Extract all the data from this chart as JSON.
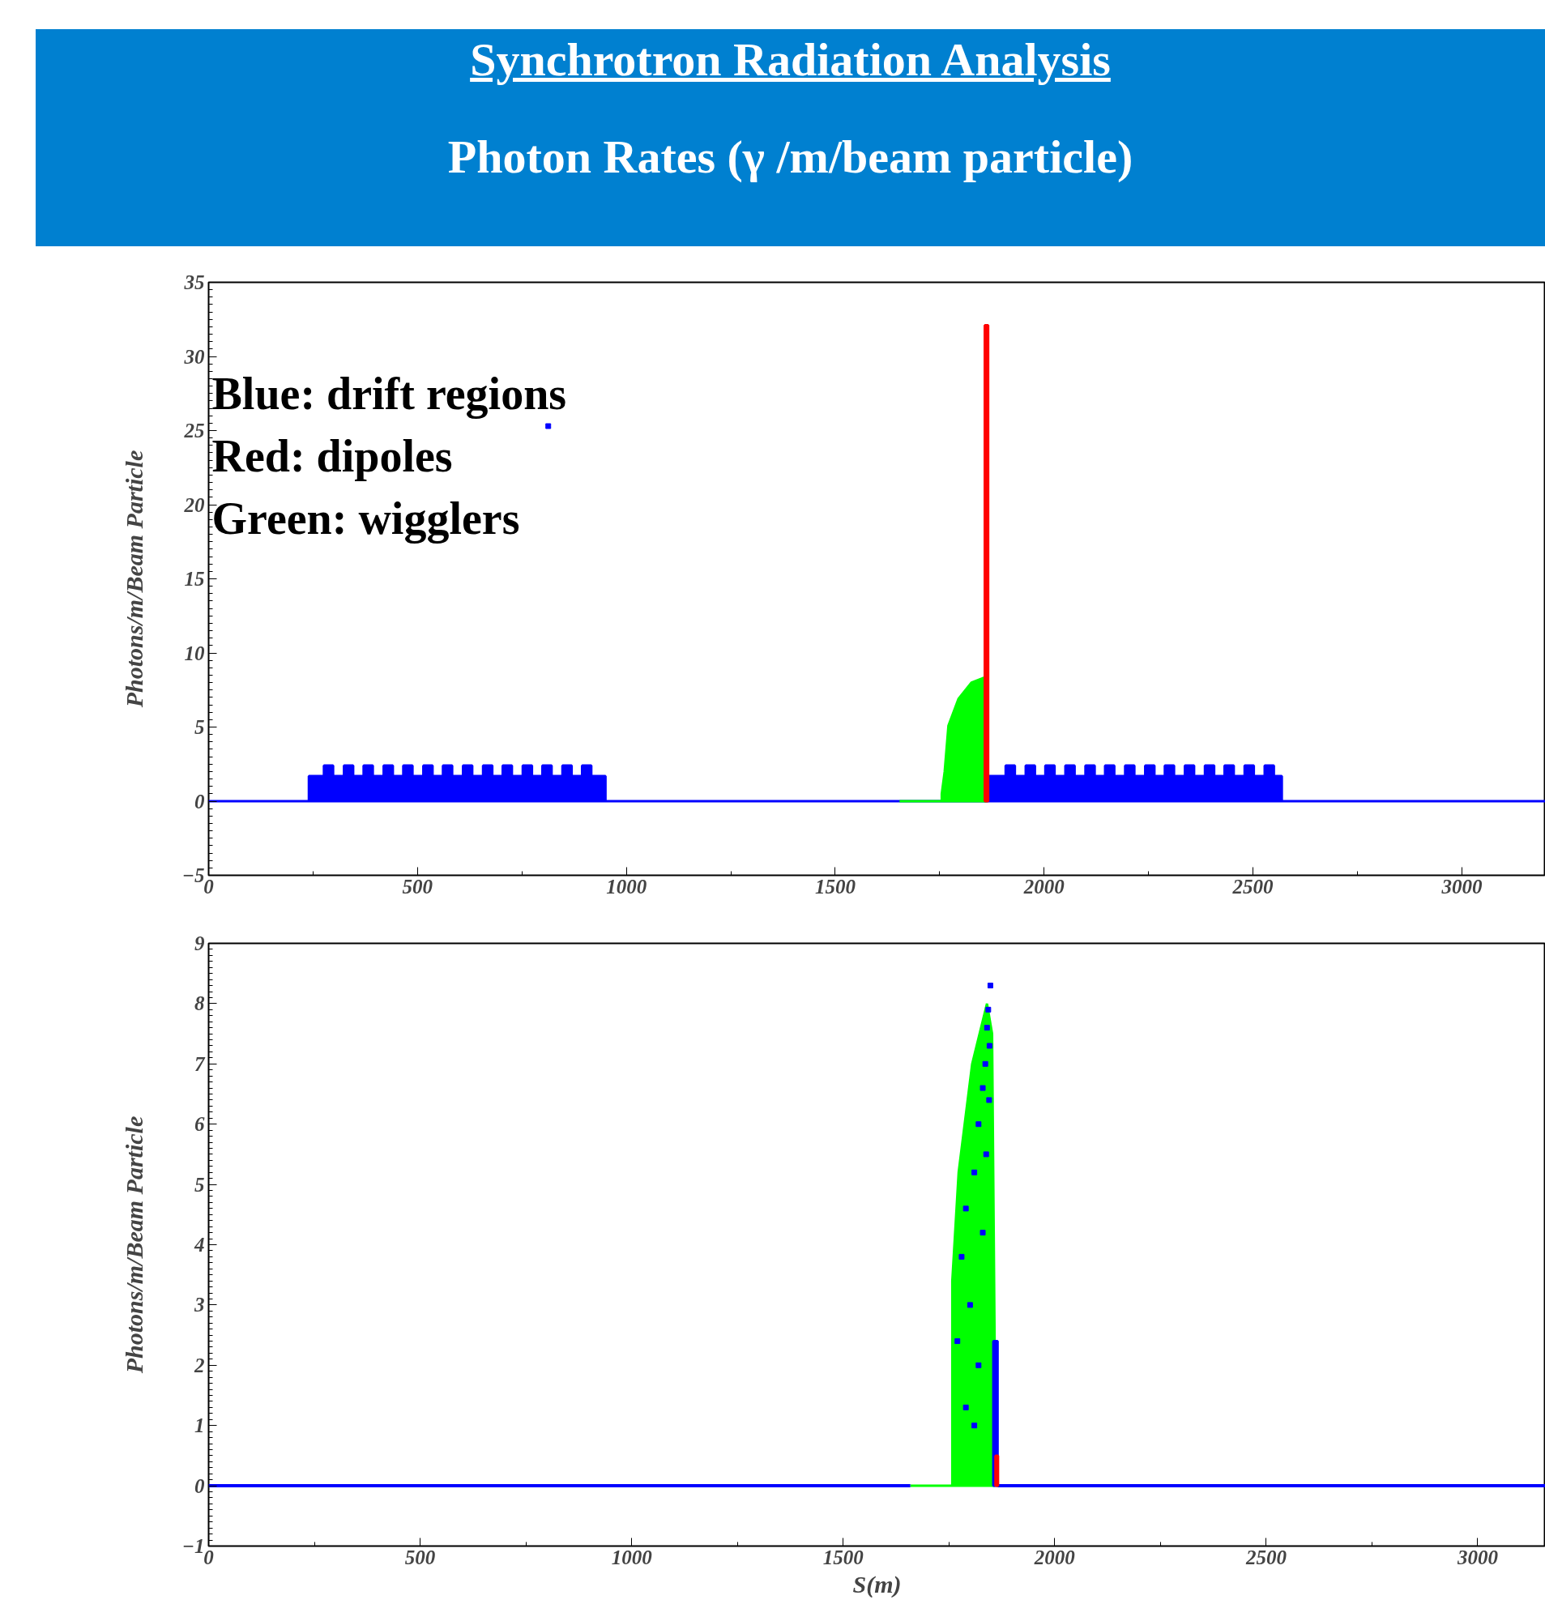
{
  "chart_data": [
    {
      "type": "area",
      "title": "Synchrotron Radiation Analysis",
      "subtitle": "Photon Rates (γ /m/beam particle)",
      "ylabel": "Photons/m/Beam Particle",
      "xlim": [
        0,
        3200
      ],
      "ylim": [
        -5,
        35
      ],
      "xticks": [
        0,
        500,
        1000,
        1500,
        2000,
        2500,
        3000
      ],
      "yticks": [
        -5,
        0,
        5,
        10,
        15,
        20,
        25,
        30,
        35
      ],
      "grid": false,
      "annotations": [
        "Blue: drift regions",
        "Red: dipoles",
        "Green: wigglers"
      ],
      "series": [
        {
          "color": "#0000ff",
          "x": [
            0,
            240,
            240,
            276,
            276,
            298,
            298,
            324,
            324,
            346,
            346,
            371,
            371,
            393,
            393,
            419,
            419,
            441,
            441,
            466,
            466,
            488,
            488,
            514,
            514,
            536,
            536,
            561,
            561,
            583,
            583,
            609,
            609,
            631,
            631,
            657,
            657,
            679,
            679,
            704,
            704,
            726,
            726,
            752,
            752,
            774,
            774,
            799,
            799,
            821,
            821,
            847,
            847,
            869,
            869,
            894,
            894,
            916,
            916,
            950,
            950,
            1862,
            1862,
            1908,
            1908,
            1930,
            1930,
            1956,
            1956,
            1978,
            1978,
            2003,
            2003,
            2025,
            2025,
            2051,
            2051,
            2073,
            2073,
            2099,
            2099,
            2121,
            2121,
            2146,
            2146,
            2168,
            2168,
            2194,
            2194,
            2216,
            2216,
            2242,
            2242,
            2264,
            2264,
            2289,
            2289,
            2311,
            2311,
            2337,
            2337,
            2359,
            2359,
            2385,
            2385,
            2407,
            2407,
            2432,
            2432,
            2454,
            2454,
            2480,
            2480,
            2502,
            2502,
            2528,
            2528,
            2550,
            2550,
            2569,
            2569,
            3200
          ],
          "values": [
            0,
            0,
            1.7,
            1.7,
            2.4,
            2.4,
            1.7,
            1.7,
            2.4,
            2.4,
            1.7,
            1.7,
            2.4,
            2.4,
            1.7,
            1.7,
            2.4,
            2.4,
            1.7,
            1.7,
            2.4,
            2.4,
            1.7,
            1.7,
            2.4,
            2.4,
            1.7,
            1.7,
            2.4,
            2.4,
            1.7,
            1.7,
            2.4,
            2.4,
            1.7,
            1.7,
            2.4,
            2.4,
            1.7,
            1.7,
            2.4,
            2.4,
            1.7,
            1.7,
            2.4,
            2.4,
            1.7,
            1.7,
            2.4,
            2.4,
            1.7,
            1.7,
            2.4,
            2.4,
            1.7,
            1.7,
            2.4,
            2.4,
            1.7,
            1.7,
            0,
            0,
            1.7,
            1.7,
            2.4,
            2.4,
            1.7,
            1.7,
            2.4,
            2.4,
            1.7,
            1.7,
            2.4,
            2.4,
            1.7,
            1.7,
            2.4,
            2.4,
            1.7,
            1.7,
            2.4,
            2.4,
            1.7,
            1.7,
            2.4,
            2.4,
            1.7,
            1.7,
            2.4,
            2.4,
            1.7,
            1.7,
            2.4,
            2.4,
            1.7,
            1.7,
            2.4,
            2.4,
            1.7,
            1.7,
            2.4,
            2.4,
            1.7,
            1.7,
            2.4,
            2.4,
            1.7,
            1.7,
            2.4,
            2.4,
            1.7,
            1.7,
            2.4,
            2.4,
            1.7,
            1.7,
            2.4,
            2.4,
            1.7,
            1.7,
            0,
            0
          ]
        },
        {
          "color": "#00ff00",
          "x": [
            1654,
            1755,
            1755,
            1762,
            1771,
            1795,
            1826,
            1862,
            1862
          ],
          "values": [
            0,
            0,
            0.5,
            2.0,
            5.1,
            6.9,
            8.0,
            8.4,
            0
          ]
        },
        {
          "color": "#ff0000",
          "x": [
            1858,
            1858,
            1866,
            1866
          ],
          "values": [
            0,
            32.1,
            32.1,
            0
          ]
        },
        {
          "type": "scatter",
          "color": "#0000ff",
          "marker": "square",
          "x": [
            813
          ],
          "values": [
            25.3
          ]
        }
      ]
    },
    {
      "type": "area",
      "ylabel": "Photons/m/Beam Particle",
      "xlabel": "S(m)",
      "xlim": [
        0,
        3160
      ],
      "ylim": [
        -1,
        9
      ],
      "xticks": [
        0,
        500,
        1000,
        1500,
        2000,
        2500,
        3000
      ],
      "yticks": [
        -1,
        0,
        1,
        2,
        3,
        4,
        5,
        6,
        7,
        8,
        9
      ],
      "grid": false,
      "series": [
        {
          "type": "line",
          "color": "#0000ff",
          "x": [
            0,
            1659,
            1660,
            1865,
            3160
          ],
          "values": [
            0,
            0,
            null,
            0,
            0
          ]
        },
        {
          "color": "#00ff00",
          "x": [
            1659,
            1758,
            1758,
            1773,
            1805,
            1840,
            1852,
            1858,
            1858
          ],
          "values": [
            0,
            0,
            3.4,
            5.2,
            7.0,
            8.0,
            7.5,
            2.4,
            0
          ]
        },
        {
          "color": "#0000ff",
          "x": [
            1855,
            1855,
            1865,
            1865
          ],
          "values": [
            0,
            2.4,
            2.4,
            0
          ]
        },
        {
          "color": "#ff0000",
          "x": [
            1860,
            1860,
            1866,
            1866
          ],
          "values": [
            0,
            0.5,
            0.5,
            0
          ]
        },
        {
          "type": "scatter",
          "color": "#0000ff",
          "marker": "square",
          "x": [
            1848,
            1843,
            1840,
            1846,
            1836,
            1830,
            1845,
            1820,
            1838,
            1810,
            1790,
            1830,
            1780,
            1800,
            1770,
            1820,
            1790,
            1810
          ],
          "values": [
            8.3,
            7.9,
            7.6,
            7.3,
            7.0,
            6.6,
            6.4,
            6.0,
            5.5,
            5.2,
            4.6,
            4.2,
            3.8,
            3.0,
            2.4,
            2.0,
            1.3,
            1.0
          ]
        }
      ]
    }
  ]
}
